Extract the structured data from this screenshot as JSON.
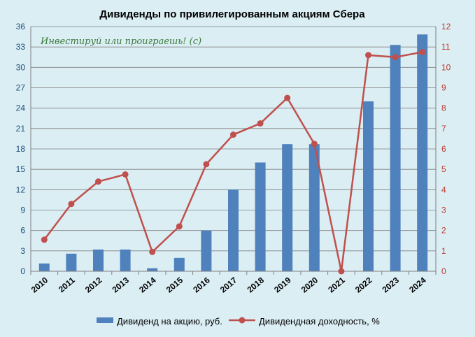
{
  "chart_data": {
    "type": "bar+line",
    "title": "Дивиденды по привилегированным  акциям Сбера",
    "annotation": "Инвестируй или проиграешь! (с)",
    "categories": [
      "2010",
      "2011",
      "2012",
      "2013",
      "2014",
      "2015",
      "2016",
      "2017",
      "2018",
      "2019",
      "2020",
      "2021",
      "2022",
      "2023",
      "2024"
    ],
    "series": [
      {
        "name": "Дивиденд на акцию, руб.",
        "type": "bar",
        "axis": "left",
        "color": "#4f81bd",
        "values": [
          1.15,
          2.59,
          3.2,
          3.2,
          0.45,
          1.97,
          6.0,
          12.0,
          16.0,
          18.7,
          18.7,
          0.0,
          25.0,
          33.3,
          34.84
        ]
      },
      {
        "name": "Дивидендная доходность, %",
        "type": "line",
        "axis": "right",
        "color": "#c0504d",
        "values": [
          1.55,
          3.3,
          4.4,
          4.75,
          0.95,
          2.2,
          5.25,
          6.7,
          7.25,
          8.5,
          6.25,
          0.0,
          10.6,
          10.5,
          10.75
        ]
      }
    ],
    "y_left": {
      "min": 0,
      "max": 36,
      "ticks": [
        "0",
        "3",
        "6",
        "9",
        "12",
        "15",
        "18",
        "21",
        "24",
        "27",
        "30",
        "33",
        "36"
      ]
    },
    "y_right": {
      "min": 0,
      "max": 12,
      "ticks": [
        "0",
        "1",
        "2",
        "3",
        "4",
        "5",
        "6",
        "7",
        "8",
        "9",
        "10",
        "11",
        "12"
      ]
    },
    "grid": true,
    "legend_position": "bottom"
  }
}
